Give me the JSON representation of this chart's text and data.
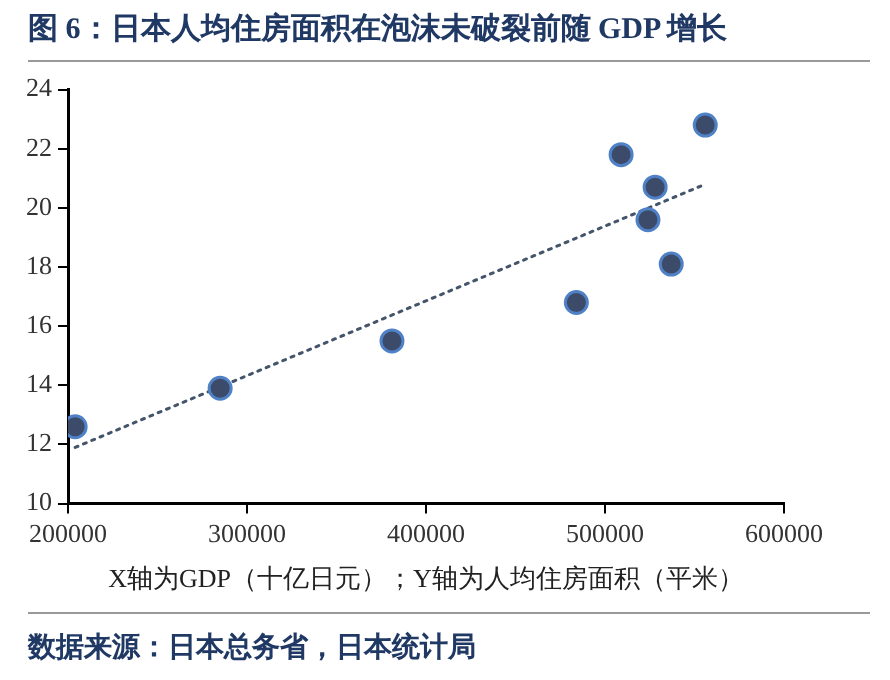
{
  "chart_data": {
    "type": "scatter",
    "title": "图 6：日本人均住房面积在泡沫未破裂前随 GDP 增长",
    "xlabel": "X轴为GDP（十亿日元）；Y轴为人均住房面积（平米）",
    "series": [
      {
        "color": "#3d4b6b",
        "x": [
          204000,
          285000,
          381000,
          484000,
          509000,
          524000,
          528000,
          537000,
          556000
        ],
        "values": [
          12.6,
          13.9,
          15.5,
          16.8,
          21.8,
          19.6,
          20.7,
          18.1,
          22.8
        ]
      },
      {
        "type": "line",
        "color": "#44546a",
        "line_style": "dotted",
        "marker": "none",
        "x": [
          204000,
          556000
        ],
        "values": [
          11.9,
          20.8
        ]
      }
    ],
    "xlim": [
      200000,
      600000
    ],
    "xticks": [
      200000,
      300000,
      400000,
      500000,
      600000
    ],
    "ylim": [
      10,
      24
    ],
    "yticks": [
      10,
      12,
      14,
      16,
      18,
      20,
      22,
      24
    ],
    "marker": "circle",
    "grid": false,
    "legend": false,
    "annotations": [
      "数据来源：日本总务省，日本统计局"
    ]
  }
}
